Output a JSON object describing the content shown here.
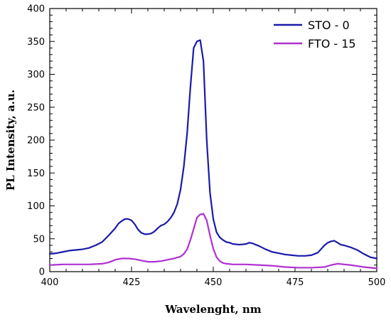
{
  "chart_data": {
    "type": "line",
    "xlabel": "Wavelenght, nm",
    "ylabel": "PL Intensity, a.u.",
    "xlim": [
      400,
      500
    ],
    "ylim": [
      0,
      400
    ],
    "x_ticks": [
      "400",
      "425",
      "450",
      "475",
      "500"
    ],
    "y_ticks": [
      "0",
      "50",
      "100",
      "150",
      "200",
      "250",
      "300",
      "350",
      "400"
    ],
    "legend_position": "top-right",
    "grid": false,
    "series": [
      {
        "name": "STO - 0",
        "color": "#1a1aaa",
        "x": [
          400,
          402,
          404,
          406,
          408,
          410,
          412,
          414,
          416,
          418,
          420,
          421,
          422,
          423,
          424,
          425,
          426,
          427,
          428,
          429,
          430,
          431,
          432,
          433,
          434,
          435,
          436,
          437,
          438,
          439,
          440,
          441,
          442,
          443,
          444,
          445,
          446,
          447,
          448,
          449,
          450,
          451,
          452,
          453,
          454,
          455,
          456,
          458,
          460,
          461,
          462,
          464,
          466,
          468,
          470,
          472,
          474,
          476,
          478,
          480,
          482,
          484,
          485,
          486,
          487,
          488,
          489,
          490,
          492,
          494,
          496,
          498,
          500
        ],
        "y": [
          27,
          28,
          30,
          32,
          33,
          34,
          36,
          40,
          45,
          55,
          66,
          73,
          77,
          80,
          80,
          78,
          72,
          64,
          59,
          57,
          57,
          58,
          61,
          66,
          70,
          72,
          76,
          82,
          90,
          103,
          125,
          160,
          210,
          280,
          340,
          350,
          352,
          320,
          200,
          120,
          80,
          60,
          52,
          48,
          45,
          44,
          42,
          41,
          42,
          44,
          43,
          39,
          34,
          30,
          28,
          26,
          25,
          24,
          24,
          25,
          29,
          40,
          44,
          46,
          47,
          44,
          41,
          40,
          37,
          33,
          27,
          22,
          20
        ]
      },
      {
        "name": "FTO - 15",
        "color": "#b030d0",
        "x": [
          400,
          404,
          408,
          412,
          416,
          418,
          420,
          422,
          424,
          426,
          428,
          430,
          432,
          434,
          436,
          438,
          440,
          441,
          442,
          443,
          444,
          445,
          446,
          447,
          448,
          449,
          450,
          451,
          452,
          453,
          454,
          456,
          460,
          464,
          468,
          472,
          476,
          480,
          484,
          486,
          488,
          490,
          492,
          496,
          500
        ],
        "y": [
          10,
          11,
          11,
          11,
          12,
          14,
          18,
          20,
          20,
          19,
          17,
          15,
          15,
          16,
          18,
          20,
          23,
          27,
          34,
          48,
          65,
          82,
          87,
          88,
          78,
          55,
          35,
          22,
          16,
          13,
          12,
          11,
          11,
          10,
          9,
          7,
          6,
          6,
          7,
          10,
          12,
          11,
          10,
          7,
          5
        ]
      }
    ]
  }
}
